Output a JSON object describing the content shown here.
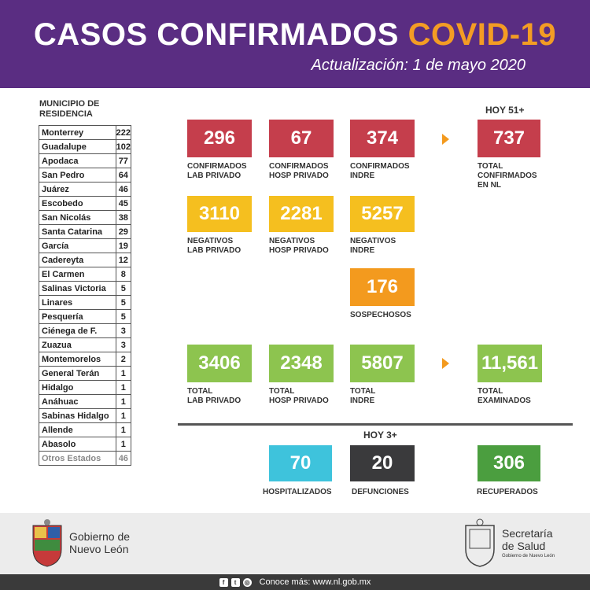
{
  "header": {
    "title_main": "CASOS CONFIRMADOS",
    "title_accent": "COVID-19",
    "update": "Actualización: 1 de mayo 2020"
  },
  "municipios": {
    "heading": "MUNICIPIO DE\nRESIDENCIA",
    "rows": [
      {
        "name": "Monterrey",
        "value": "222"
      },
      {
        "name": "Guadalupe",
        "value": "102"
      },
      {
        "name": "Apodaca",
        "value": "77"
      },
      {
        "name": "San Pedro",
        "value": "64"
      },
      {
        "name": "Juárez",
        "value": "46"
      },
      {
        "name": "Escobedo",
        "value": "45"
      },
      {
        "name": "San Nicolás",
        "value": "38"
      },
      {
        "name": "Santa Catarina",
        "value": "29"
      },
      {
        "name": "García",
        "value": "19"
      },
      {
        "name": "Cadereyta",
        "value": "12"
      },
      {
        "name": "El Carmen",
        "value": "8"
      },
      {
        "name": "Salinas Victoria",
        "value": "5"
      },
      {
        "name": "Linares",
        "value": "5"
      },
      {
        "name": "Pesquería",
        "value": "5"
      },
      {
        "name": "Ciénega de F.",
        "value": "3"
      },
      {
        "name": "Zuazua",
        "value": "3"
      },
      {
        "name": "Montemorelos",
        "value": "2"
      },
      {
        "name": "General Terán",
        "value": "1"
      },
      {
        "name": "Hidalgo",
        "value": "1"
      },
      {
        "name": "Anáhuac",
        "value": "1"
      },
      {
        "name": "Sabinas Hidalgo",
        "value": "1"
      },
      {
        "name": "Allende",
        "value": "1"
      },
      {
        "name": "Abasolo",
        "value": "1"
      },
      {
        "name": "Otros Estados",
        "value": "46"
      }
    ]
  },
  "hoy_confirmados": "HOY 51+",
  "confirmados": {
    "lab_privado": {
      "value": "296",
      "label": "CONFIRMADOS\nLAB PRIVADO"
    },
    "hosp_privado": {
      "value": "67",
      "label": "CONFIRMADOS\nHOSP PRIVADO"
    },
    "indre": {
      "value": "374",
      "label": "CONFIRMADOS\nINDRE"
    },
    "total": {
      "value": "737",
      "label": "TOTAL\nCONFIRMADOS\nEN NL"
    }
  },
  "negativos": {
    "lab_privado": {
      "value": "3110",
      "label": "NEGATIVOS\nLAB PRIVADO"
    },
    "hosp_privado": {
      "value": "2281",
      "label": "NEGATIVOS\nHOSP PRIVADO"
    },
    "indre": {
      "value": "5257",
      "label": "NEGATIVOS\nINDRE"
    }
  },
  "sospechosos": {
    "value": "176",
    "label": "SOSPECHOSOS"
  },
  "totales": {
    "lab_privado": {
      "value": "3406",
      "label": "TOTAL\nLAB PRIVADO"
    },
    "hosp_privado": {
      "value": "2348",
      "label": "TOTAL\nHOSP PRIVADO"
    },
    "indre": {
      "value": "5807",
      "label": "TOTAL\nINDRE"
    },
    "examinados": {
      "value": "11,561",
      "label": "TOTAL\nEXAMINADOS"
    }
  },
  "hoy_estado": "HOY 3+",
  "estado": {
    "hospitalizados": {
      "value": "70",
      "label": "HOSPITALIZADOS"
    },
    "defunciones": {
      "value": "20",
      "label": "DEFUNCIONES"
    },
    "recuperados": {
      "value": "306",
      "label": "RECUPERADOS"
    }
  },
  "footer": {
    "gobierno": "Gobierno de\nNuevo León",
    "secretaria": "Secretaría\nde Salud",
    "secretaria_sub": "Gobierno de Nuevo León",
    "conoce": "Conoce más: www.nl.gob.mx",
    "icons": [
      "facebook-icon",
      "twitter-icon",
      "instagram-icon"
    ]
  },
  "colors": {
    "header": "#5a2d82",
    "accent": "#f39c24",
    "red": "#c53e4c",
    "yellow": "#f5bf1f",
    "orange": "#f39a1e",
    "green": "#8dc44f",
    "cyan": "#3ec3dc",
    "dark": "#3a3a3c",
    "dgreen": "#4b9e3f"
  }
}
